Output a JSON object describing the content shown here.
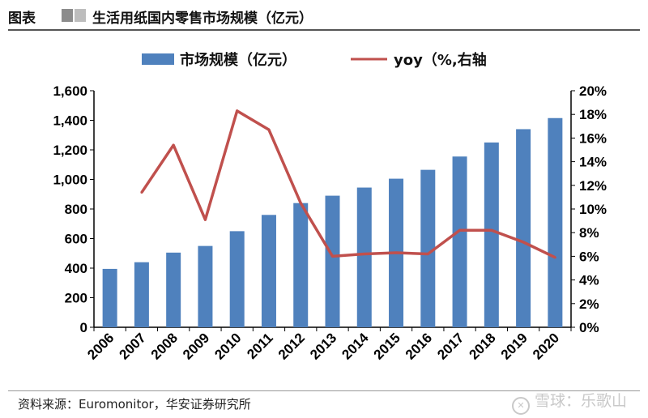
{
  "header": {
    "figure_label": "图表",
    "title": "生活用纸国内零售市场规模（亿元）"
  },
  "source": "资料来源：Euromonitor，华安证券研究所",
  "watermark": "雪球：乐歌山",
  "colors": {
    "bar": "#4f81bd",
    "line": "#c0504d"
  },
  "chart_data": {
    "type": "bar+line",
    "categories": [
      "2006",
      "2007",
      "2008",
      "2009",
      "2010",
      "2011",
      "2012",
      "2013",
      "2014",
      "2015",
      "2016",
      "2017",
      "2018",
      "2019",
      "2020"
    ],
    "series": [
      {
        "name": "市场规模（亿元）",
        "type": "bar",
        "axis": "left",
        "values": [
          395,
          440,
          505,
          550,
          650,
          760,
          840,
          890,
          945,
          1005,
          1065,
          1155,
          1250,
          1340,
          1415
        ]
      },
      {
        "name": "yoy（%,右轴",
        "type": "line",
        "axis": "right",
        "values": [
          null,
          11.4,
          15.4,
          9.1,
          18.3,
          16.7,
          10.5,
          6.0,
          6.2,
          6.3,
          6.2,
          8.2,
          8.2,
          7.2,
          5.9
        ]
      }
    ],
    "y_left": {
      "min": 0,
      "max": 1600,
      "ticks": [
        "0",
        "200",
        "400",
        "600",
        "800",
        "1,000",
        "1,200",
        "1,400",
        "1,600"
      ]
    },
    "y_right": {
      "min": 0,
      "max": 20,
      "ticks": [
        "0%",
        "2%",
        "4%",
        "6%",
        "8%",
        "10%",
        "12%",
        "14%",
        "16%",
        "18%",
        "20%"
      ]
    },
    "legend_position": "top"
  }
}
